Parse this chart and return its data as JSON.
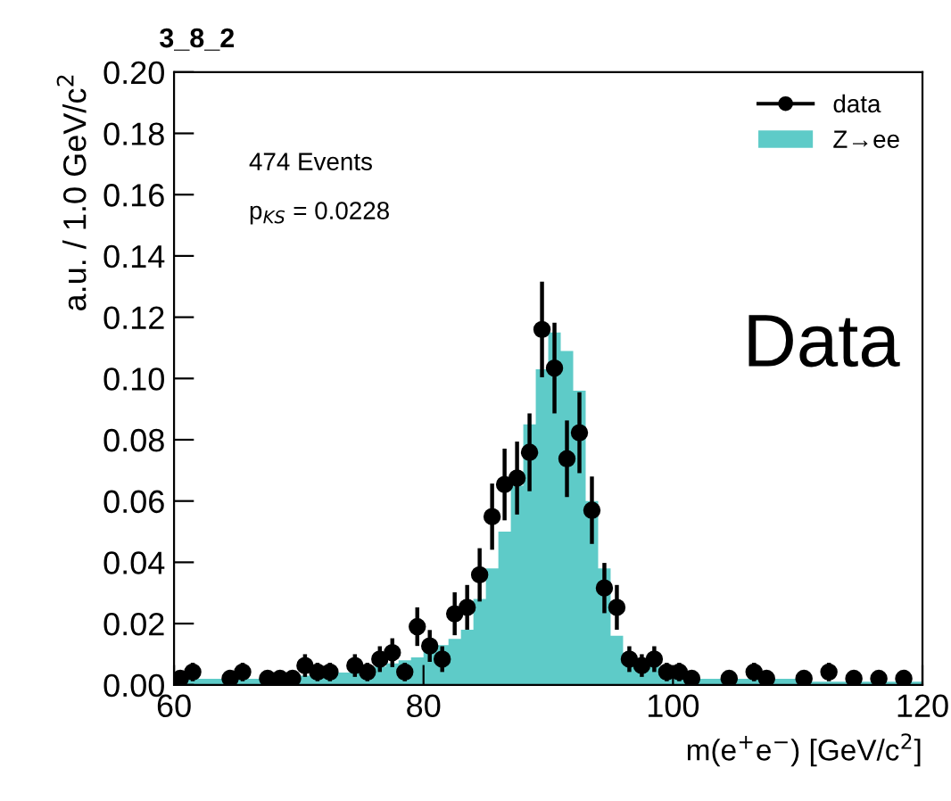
{
  "chart_data": {
    "type": "histogram",
    "title": "3_8_2",
    "xlabel": "m(e$^{+}$e$^{−}$) [GeV/c$^{2}$]",
    "ylabel": "a.u. / 1.0 GeV/c$^{2}$",
    "annotations": [
      "474 Events",
      "p$_{KS}$ = 0.0228",
      "Data"
    ],
    "bins": [
      60,
      61,
      62,
      63,
      64,
      65,
      66,
      67,
      68,
      69,
      70,
      71,
      72,
      73,
      74,
      75,
      76,
      77,
      78,
      79,
      80,
      81,
      82,
      83,
      84,
      85,
      86,
      87,
      88,
      89,
      90,
      91,
      92,
      93,
      94,
      95,
      96,
      97,
      98,
      99,
      100,
      101,
      102,
      103,
      104,
      105,
      106,
      107,
      108,
      109,
      110,
      111,
      112,
      113,
      114,
      115,
      116,
      117,
      118,
      119,
      120
    ],
    "series": [
      {
        "name": "Z→ee",
        "color": "#5ecbc8",
        "values": [
          0.002,
          0.002,
          0.002,
          0.002,
          0.002,
          0.002,
          0.002,
          0.002,
          0.002,
          0.002,
          0.003,
          0.003,
          0.003,
          0.004,
          0.004,
          0.005,
          0.006,
          0.007,
          0.008,
          0.009,
          0.011,
          0.013,
          0.015,
          0.018,
          0.028,
          0.038,
          0.05,
          0.065,
          0.085,
          0.103,
          0.115,
          0.109,
          0.096,
          0.06,
          0.038,
          0.016,
          0.01,
          0.007,
          0.006,
          0.004,
          0.003,
          0.003,
          0.002,
          0.002,
          0.002,
          0.002,
          0.002,
          0.002,
          0.002,
          0.002,
          0.001,
          0.001,
          0.001,
          0.001,
          0.001,
          0.001,
          0.001,
          0.001,
          0.001,
          0.001
        ]
      },
      {
        "name": "data",
        "type": "scatter",
        "color": "#000000",
        "marker": "circle",
        "x": [
          60.5,
          61.5,
          64.5,
          65.5,
          67.5,
          68.5,
          69.5,
          70.5,
          71.5,
          72.5,
          74.5,
          75.5,
          76.5,
          77.5,
          78.5,
          79.5,
          80.5,
          81.5,
          82.5,
          83.5,
          84.5,
          85.5,
          86.5,
          87.5,
          88.5,
          89.5,
          90.5,
          91.5,
          92.5,
          93.5,
          94.5,
          95.5,
          96.5,
          97.5,
          98.5,
          99.5,
          100.5,
          101.5,
          104.5,
          106.5,
          107.5,
          110.5,
          112.5,
          114.5,
          116.5,
          118.5
        ],
        "values": [
          0.0021,
          0.0042,
          0.0021,
          0.0042,
          0.0021,
          0.0021,
          0.0021,
          0.0063,
          0.0042,
          0.0042,
          0.0063,
          0.0042,
          0.0084,
          0.0105,
          0.0042,
          0.019,
          0.0127,
          0.0084,
          0.0232,
          0.0253,
          0.0359,
          0.0549,
          0.0654,
          0.0675,
          0.0759,
          0.116,
          0.1034,
          0.0738,
          0.0823,
          0.057,
          0.0316,
          0.0253,
          0.0084,
          0.0063,
          0.0084,
          0.0042,
          0.0042,
          0.0021,
          0.0021,
          0.0042,
          0.0021,
          0.0021,
          0.0042,
          0.0021,
          0.0021,
          0.0021
        ],
        "errors": [
          0.0021,
          0.003,
          0.0021,
          0.003,
          0.0021,
          0.0021,
          0.0021,
          0.0037,
          0.003,
          0.003,
          0.0037,
          0.003,
          0.0042,
          0.0047,
          0.003,
          0.0063,
          0.0052,
          0.0042,
          0.007,
          0.0073,
          0.0087,
          0.0108,
          0.0117,
          0.0119,
          0.0127,
          0.0156,
          0.0148,
          0.0125,
          0.0132,
          0.011,
          0.0082,
          0.0073,
          0.0042,
          0.0037,
          0.0042,
          0.003,
          0.003,
          0.0021,
          0.0021,
          0.003,
          0.0021,
          0.0021,
          0.003,
          0.0021,
          0.0021,
          0.0021
        ]
      }
    ],
    "xlim": [
      60,
      120
    ],
    "xticks": [
      60,
      80,
      100,
      120
    ],
    "ylim": [
      0,
      0.2
    ],
    "yticks": [
      {
        "value": 0,
        "label": "0.00"
      },
      {
        "value": 0.02,
        "label": "0.02"
      },
      {
        "value": 0.04,
        "label": "0.04"
      },
      {
        "value": 0.06,
        "label": "0.06"
      },
      {
        "value": 0.08,
        "label": "0.08"
      },
      {
        "value": 0.1,
        "label": "0.10"
      },
      {
        "value": 0.12,
        "label": "0.12"
      },
      {
        "value": 0.14,
        "label": "0.14"
      },
      {
        "value": 0.16,
        "label": "0.16"
      },
      {
        "value": 0.18,
        "label": "0.18"
      },
      {
        "value": 0.2,
        "label": "0.20"
      }
    ],
    "grid": false,
    "legend": "top right"
  }
}
